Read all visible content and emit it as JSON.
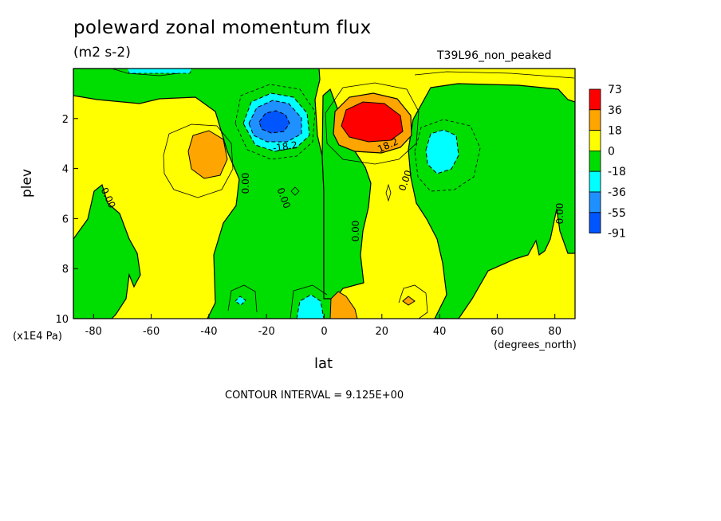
{
  "chart_data": {
    "type": "heatmap",
    "title": "poleward zonal momentum flux",
    "units": "(m2 s-2)",
    "run_label": "T39L96_non_peaked",
    "xlabel": "lat",
    "x_units": "(degrees_north)",
    "ylabel": "plev",
    "y_units": "(x1E4 Pa)",
    "contour_interval_text": "CONTOUR INTERVAL = 9.125E+00",
    "xlim": [
      -87,
      87
    ],
    "ylim": [
      10,
      0
    ],
    "x_ticks": [
      -80,
      -60,
      -40,
      -20,
      0,
      20,
      40,
      60,
      80
    ],
    "y_ticks": [
      2,
      4,
      6,
      8,
      10
    ],
    "colorbar": {
      "levels": [
        "73",
        "36",
        "18",
        "0",
        "-18",
        "-36",
        "-55",
        "-91"
      ],
      "colors": [
        "#ff0000",
        "#ffa500",
        "#ffff00",
        "#00dd00",
        "#00ffff",
        "#1e90ff",
        "#0055ff"
      ]
    },
    "contour_labels": [
      "-18.2",
      "18.2",
      "0.00",
      "0.00",
      "0.00",
      "0.00",
      "0.00",
      "0.00",
      "0.00"
    ],
    "features": [
      {
        "name": "southern negative jet core",
        "lat": -18,
        "plev": 2.3,
        "value": -91
      },
      {
        "name": "northern positive jet core",
        "lat": 18,
        "plev": 2.3,
        "value": 73
      },
      {
        "name": "southern positive lobe",
        "lat": -41,
        "plev": 3.2,
        "value": 36
      },
      {
        "name": "northern negative lobe",
        "lat": 42,
        "plev": 3.5,
        "value": -36
      },
      {
        "name": "near-surface negative lobe",
        "lat": -6,
        "plev": 9.6,
        "value": -36
      },
      {
        "name": "near-surface positive lobe",
        "lat": 6,
        "plev": 9.6,
        "value": 36
      }
    ]
  }
}
